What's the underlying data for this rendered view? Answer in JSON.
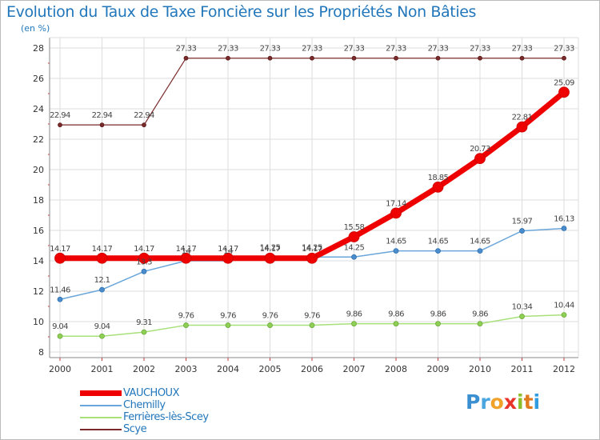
{
  "header": {
    "title": "Evolution du Taux de Taxe Foncière sur les Propriétés Non Bâties",
    "unit": "(en %)"
  },
  "brand": {
    "letters": [
      {
        "ch": "P",
        "color": "#3a8fd0"
      },
      {
        "ch": "r",
        "color": "#4aa6df"
      },
      {
        "ch": "o",
        "color": "#f0a22a"
      },
      {
        "ch": "x",
        "color": "#e8342b"
      },
      {
        "ch": "i",
        "color": "#8cbf2a"
      },
      {
        "ch": "t",
        "color": "#e07a1f"
      },
      {
        "ch": "i",
        "color": "#2f9be0"
      }
    ]
  },
  "chart_data": {
    "type": "line",
    "title": "Evolution du Taux de Taxe Foncière sur les Propriétés Non Bâties",
    "ylabel": "(en %)",
    "xlabel": "",
    "x": [
      "2000",
      "2001",
      "2002",
      "2003",
      "2004",
      "2005",
      "2006",
      "2007",
      "2008",
      "2009",
      "2010",
      "2011",
      "2012"
    ],
    "ylim": [
      8,
      28
    ],
    "yticks": [
      8,
      10,
      12,
      14,
      16,
      18,
      20,
      22,
      24,
      26,
      28
    ],
    "grid": true,
    "legend_position": "bottom-left",
    "series": [
      {
        "name": "Scye",
        "color": "#7a2a2a",
        "values": [
          22.94,
          22.94,
          22.94,
          27.33,
          27.33,
          27.33,
          27.33,
          27.33,
          27.33,
          27.33,
          27.33,
          27.33,
          27.33
        ],
        "labels": [
          "22.94",
          "22.94",
          "22.94",
          "27.33",
          "27.33",
          "27.33",
          "27.33",
          "27.33",
          "27.33",
          "27.33",
          "27.33",
          "27.33",
          "27.33"
        ]
      },
      {
        "name": "Chemilly",
        "color": "#5b9bd5",
        "values": [
          11.46,
          12.1,
          13.3,
          14,
          14,
          14.25,
          14.25,
          14.25,
          14.65,
          14.65,
          14.65,
          15.97,
          16.13
        ],
        "labels": [
          "11.46",
          "12.1",
          "13.3",
          "14",
          "14",
          "14.25",
          "14.25",
          "14.25",
          "14.65",
          "14.65",
          "14.65",
          "15.97",
          "16.13"
        ]
      },
      {
        "name": "Ferrières-lès-Scey",
        "color": "#99dd66",
        "values": [
          9.04,
          9.04,
          9.31,
          9.76,
          9.76,
          9.76,
          9.76,
          9.86,
          9.86,
          9.86,
          9.86,
          10.34,
          10.44
        ],
        "labels": [
          "9.04",
          "9.04",
          "9.31",
          "9.76",
          "9.76",
          "9.76",
          "9.76",
          "9.86",
          "9.86",
          "9.86",
          "9.86",
          "10.34",
          "10.44"
        ]
      },
      {
        "name": "VAUCHOUX",
        "color": "#ee0000",
        "values": [
          14.17,
          14.17,
          14.17,
          14.17,
          14.17,
          14.17,
          14.17,
          15.58,
          17.14,
          18.85,
          20.73,
          22.81,
          25.09
        ],
        "labels": [
          "14.17",
          "14.17",
          "14.17",
          "14.17",
          "14.17",
          "14.17",
          "14.17",
          "15.58",
          "17.14",
          "18.85",
          "20.73",
          "22.81",
          "25.09"
        ]
      }
    ],
    "legend_order": [
      "VAUCHOUX",
      "Chemilly",
      "Ferrières-lès-Scey",
      "Scye"
    ]
  }
}
